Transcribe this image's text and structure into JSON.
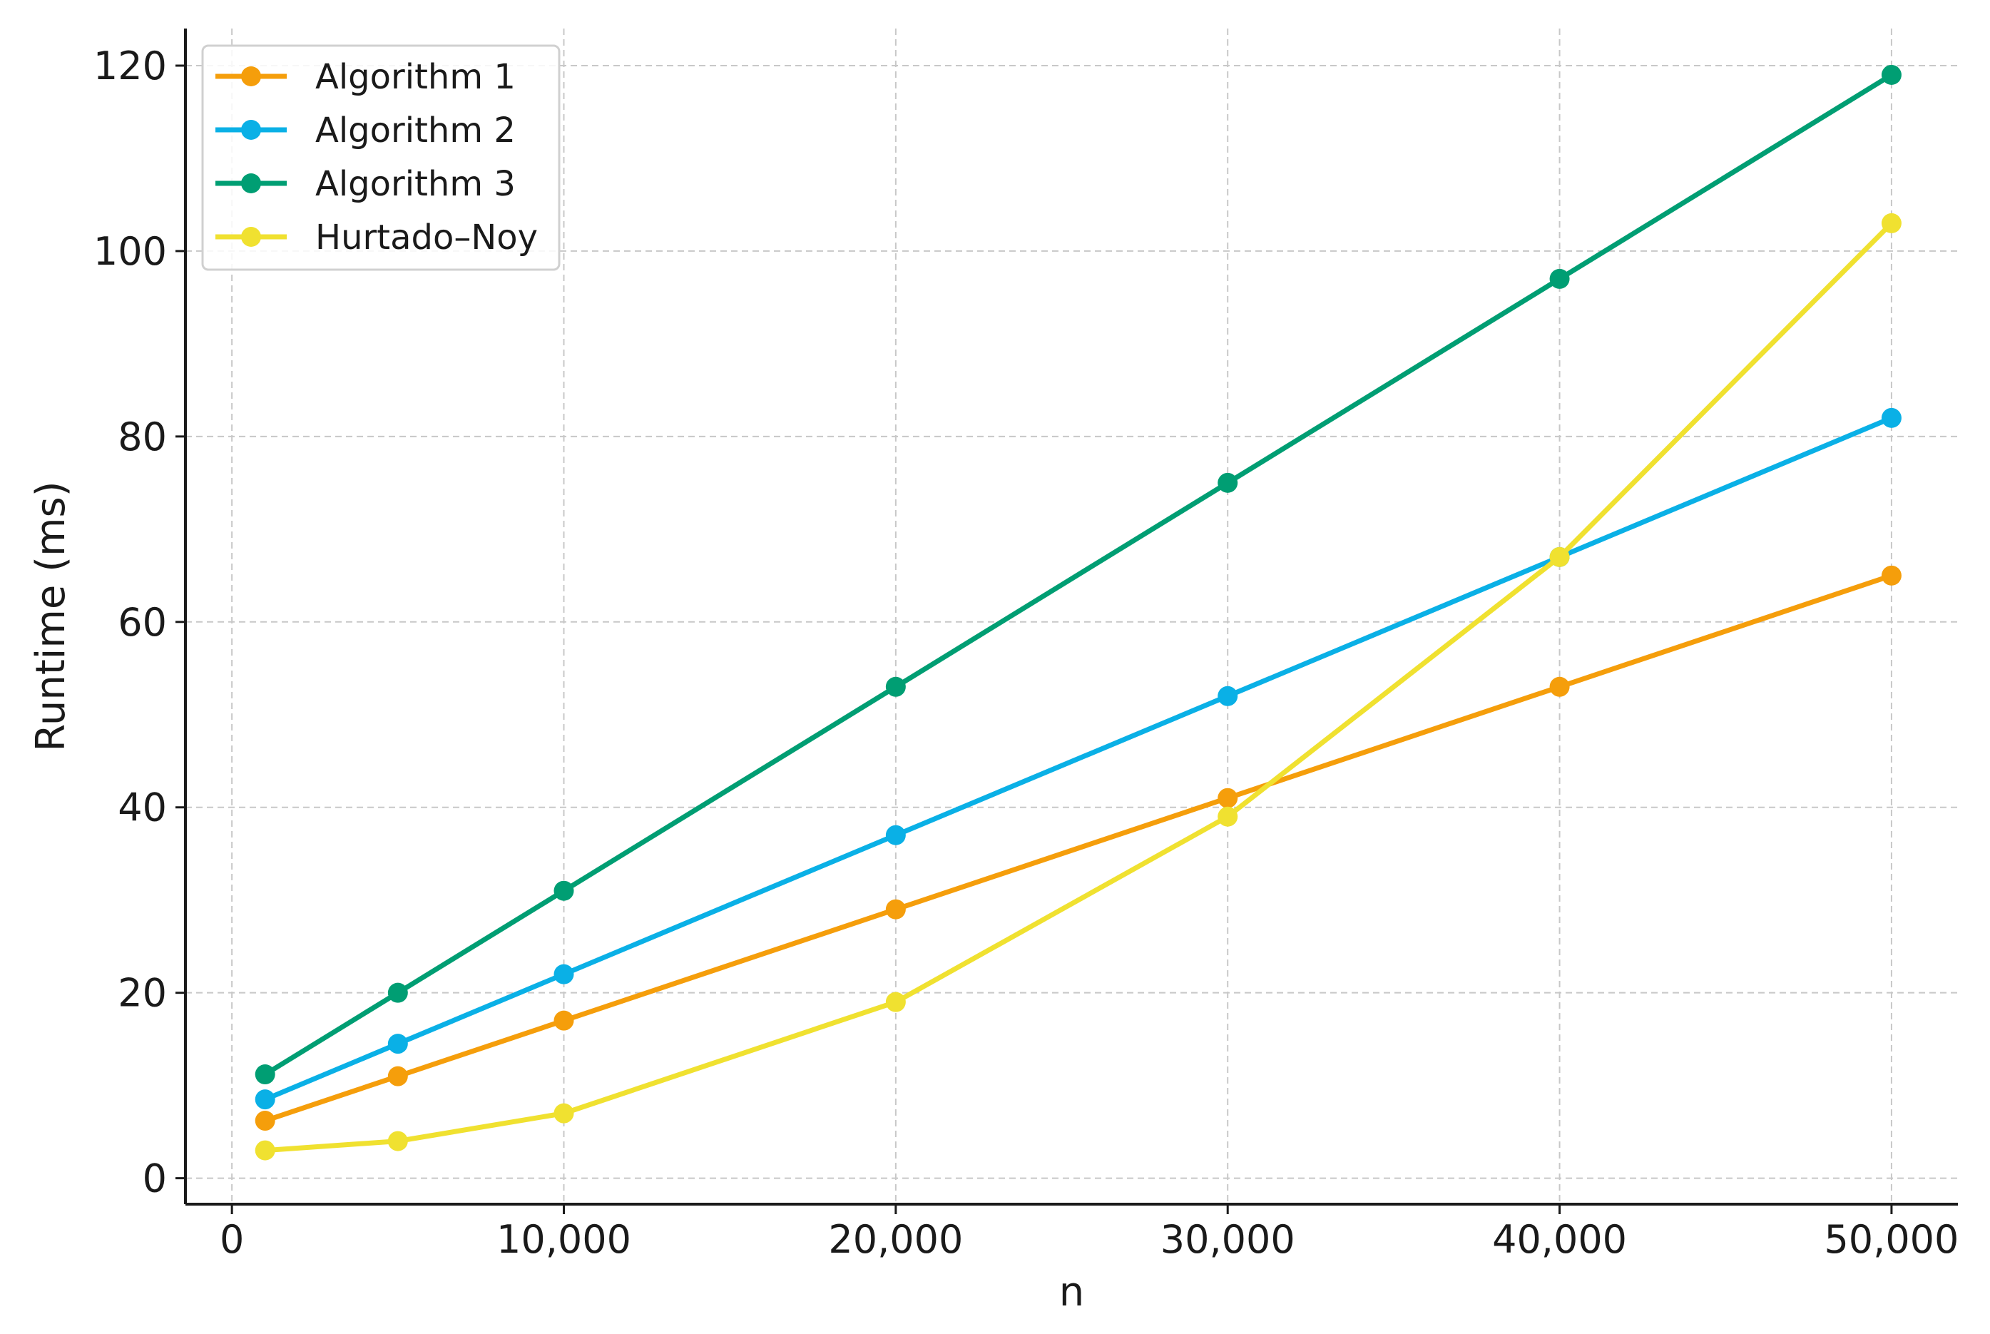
{
  "chart_data": {
    "type": "line",
    "title": "",
    "xlabel": "n",
    "ylabel": "Runtime (ms)",
    "x": [
      1000,
      5000,
      10000,
      20000,
      30000,
      40000,
      50000
    ],
    "xlim": [
      -1400,
      52000
    ],
    "ylim": [
      -2.8,
      124
    ],
    "x_ticks": [
      0,
      10000,
      20000,
      30000,
      40000,
      50000
    ],
    "x_tick_labels": [
      "0",
      "10,000",
      "20,000",
      "30,000",
      "40,000",
      "50,000"
    ],
    "y_ticks": [
      0,
      20,
      40,
      60,
      80,
      100,
      120
    ],
    "y_tick_labels": [
      "0",
      "20",
      "40",
      "60",
      "80",
      "100",
      "120"
    ],
    "grid": true,
    "legend_position": "top-left",
    "series": [
      {
        "name": "Algorithm 1",
        "color": "#f59e0b",
        "values": [
          6.2,
          11,
          17,
          29,
          41,
          53,
          65
        ]
      },
      {
        "name": "Algorithm 2",
        "color": "#0ab0e6",
        "values": [
          8.5,
          14.5,
          22,
          37,
          52,
          67,
          82
        ]
      },
      {
        "name": "Algorithm 3",
        "color": "#009e73",
        "values": [
          11.2,
          20,
          31,
          53,
          75,
          97,
          119
        ]
      },
      {
        "name": "Hurtado–Noy",
        "color": "#f0e130",
        "values": [
          3,
          4,
          7,
          19,
          39,
          67,
          103
        ]
      }
    ]
  }
}
